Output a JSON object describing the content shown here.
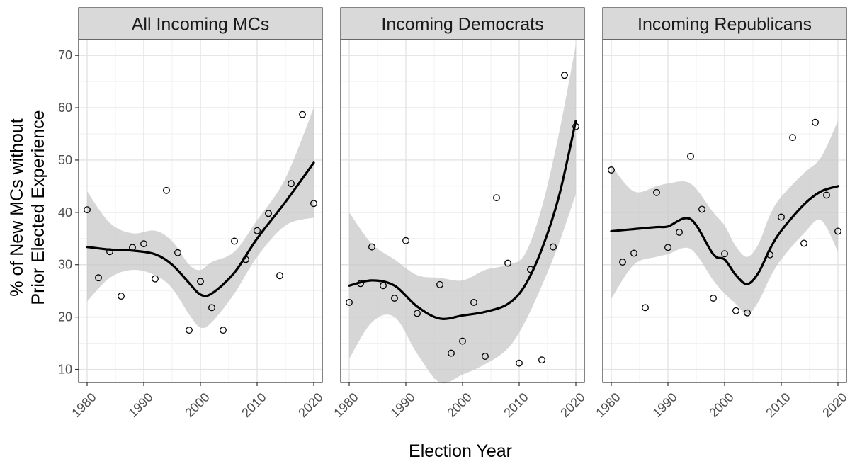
{
  "figure": {
    "xlabel": "Election Year",
    "ylabel_line1": "% of New MCs without",
    "ylabel_line2": "Prior Elected Experience"
  },
  "chart_data": {
    "type": "scatter",
    "xlabel": "Election Year",
    "ylabel": "% of New MCs without Prior Elected Experience",
    "xlim": [
      1978.5,
      2021.5
    ],
    "ylim": [
      7.5,
      73
    ],
    "x_ticks": [
      1980,
      1990,
      2000,
      2010,
      2020
    ],
    "y_ticks": [
      10,
      20,
      30,
      40,
      50,
      60,
      70
    ],
    "grid": true,
    "panels": [
      {
        "title": "All Incoming MCs",
        "points": [
          [
            1980,
            40.5
          ],
          [
            1982,
            27.5
          ],
          [
            1984,
            32.5
          ],
          [
            1986,
            24
          ],
          [
            1988,
            33.3
          ],
          [
            1990,
            34
          ],
          [
            1992,
            27.3
          ],
          [
            1994,
            44.2
          ],
          [
            1996,
            32.3
          ],
          [
            1998,
            17.5
          ],
          [
            2000,
            26.8
          ],
          [
            2002,
            21.8
          ],
          [
            2004,
            17.5
          ],
          [
            2006,
            34.5
          ],
          [
            2008,
            31
          ],
          [
            2010,
            36.5
          ],
          [
            2012,
            39.8
          ],
          [
            2014,
            27.9
          ],
          [
            2016,
            45.5
          ],
          [
            2018,
            58.7
          ],
          [
            2020,
            41.7
          ]
        ],
        "smooth": [
          [
            1980,
            33.4
          ],
          [
            1984,
            32.9
          ],
          [
            1988,
            32.7
          ],
          [
            1992,
            32.0
          ],
          [
            1995,
            30.0
          ],
          [
            1998,
            26.5
          ],
          [
            2000,
            24.3
          ],
          [
            2002,
            24.5
          ],
          [
            2006,
            28.5
          ],
          [
            2010,
            35.0
          ],
          [
            2015,
            42.0
          ],
          [
            2020,
            49.5
          ]
        ],
        "band_upper": [
          [
            1980,
            44
          ],
          [
            1984,
            38
          ],
          [
            1988,
            36
          ],
          [
            1992,
            36.5
          ],
          [
            1995,
            34.5
          ],
          [
            1998,
            30
          ],
          [
            2000,
            29
          ],
          [
            2002,
            30.5
          ],
          [
            2006,
            32.5
          ],
          [
            2010,
            38.5
          ],
          [
            2015,
            46.5
          ],
          [
            2020,
            60
          ]
        ],
        "band_lower": [
          [
            1980,
            23
          ],
          [
            1984,
            27.5
          ],
          [
            1988,
            29
          ],
          [
            1992,
            28
          ],
          [
            1995,
            25.5
          ],
          [
            1998,
            20.5
          ],
          [
            2000,
            18
          ],
          [
            2002,
            19
          ],
          [
            2006,
            24.5
          ],
          [
            2010,
            31.5
          ],
          [
            2015,
            37.5
          ],
          [
            2020,
            39
          ]
        ]
      },
      {
        "title": "Incoming Democrats",
        "points": [
          [
            1980,
            22.8
          ],
          [
            1982,
            26.4
          ],
          [
            1984,
            33.4
          ],
          [
            1986,
            26
          ],
          [
            1988,
            23.6
          ],
          [
            1990,
            34.6
          ],
          [
            1992,
            20.7
          ],
          [
            1996,
            26.2
          ],
          [
            1998,
            13.1
          ],
          [
            2000,
            15.4
          ],
          [
            2002,
            22.8
          ],
          [
            2004,
            12.5
          ],
          [
            2006,
            42.8
          ],
          [
            2008,
            30.3
          ],
          [
            2010,
            11.2
          ],
          [
            2012,
            29.1
          ],
          [
            2014,
            11.8
          ],
          [
            2016,
            33.4
          ],
          [
            2018,
            66.2
          ],
          [
            2020,
            56.4
          ]
        ],
        "smooth": [
          [
            1980,
            26
          ],
          [
            1984,
            27
          ],
          [
            1988,
            26
          ],
          [
            1992,
            22
          ],
          [
            1996,
            19.7
          ],
          [
            2000,
            20.3
          ],
          [
            2004,
            21
          ],
          [
            2008,
            22.5
          ],
          [
            2011,
            26
          ],
          [
            2014,
            33
          ],
          [
            2017,
            43
          ],
          [
            2020,
            57.5
          ]
        ],
        "band_upper": [
          [
            1980,
            40
          ],
          [
            1984,
            34
          ],
          [
            1988,
            31
          ],
          [
            1992,
            28
          ],
          [
            1996,
            27.5
          ],
          [
            2000,
            27
          ],
          [
            2004,
            29
          ],
          [
            2008,
            30
          ],
          [
            2011,
            32
          ],
          [
            2014,
            41
          ],
          [
            2017,
            55
          ],
          [
            2020,
            72
          ]
        ],
        "band_lower": [
          [
            1980,
            12
          ],
          [
            1984,
            19
          ],
          [
            1988,
            20
          ],
          [
            1992,
            13
          ],
          [
            1996,
            7.5
          ],
          [
            2000,
            9
          ],
          [
            2004,
            11
          ],
          [
            2008,
            14
          ],
          [
            2011,
            19
          ],
          [
            2014,
            26
          ],
          [
            2017,
            34
          ],
          [
            2020,
            43.5
          ]
        ]
      },
      {
        "title": "Incoming Republicans",
        "points": [
          [
            1980,
            48.1
          ],
          [
            1982,
            30.5
          ],
          [
            1984,
            32.2
          ],
          [
            1986,
            21.8
          ],
          [
            1988,
            43.8
          ],
          [
            1990,
            33.3
          ],
          [
            1992,
            36.2
          ],
          [
            1994,
            50.7
          ],
          [
            1996,
            40.6
          ],
          [
            1998,
            23.6
          ],
          [
            2000,
            32.1
          ],
          [
            2002,
            21.2
          ],
          [
            2004,
            20.8
          ],
          [
            2008,
            31.9
          ],
          [
            2010,
            39.1
          ],
          [
            2012,
            54.3
          ],
          [
            2014,
            34.1
          ],
          [
            2016,
            57.2
          ],
          [
            2018,
            43.3
          ],
          [
            2020,
            36.4
          ]
        ],
        "smooth": [
          [
            1980,
            36.4
          ],
          [
            1984,
            36.8
          ],
          [
            1988,
            37.2
          ],
          [
            1990,
            37.3
          ],
          [
            1994,
            38.7
          ],
          [
            1998,
            32
          ],
          [
            2000,
            31
          ],
          [
            2002,
            28
          ],
          [
            2004,
            26.3
          ],
          [
            2006,
            28.5
          ],
          [
            2008,
            33
          ],
          [
            2010,
            36.5
          ],
          [
            2014,
            41.5
          ],
          [
            2017,
            44
          ],
          [
            2020,
            45
          ]
        ],
        "band_upper": [
          [
            1980,
            49
          ],
          [
            1984,
            44
          ],
          [
            1988,
            45
          ],
          [
            1990,
            45.5
          ],
          [
            1994,
            45.5
          ],
          [
            1998,
            40
          ],
          [
            2000,
            37.5
          ],
          [
            2002,
            33.5
          ],
          [
            2004,
            31.5
          ],
          [
            2006,
            34
          ],
          [
            2008,
            39.5
          ],
          [
            2010,
            43
          ],
          [
            2014,
            47.5
          ],
          [
            2017,
            50.5
          ],
          [
            2020,
            57.5
          ]
        ],
        "band_lower": [
          [
            1980,
            23.5
          ],
          [
            1984,
            30
          ],
          [
            1988,
            31.5
          ],
          [
            1990,
            32
          ],
          [
            1994,
            33
          ],
          [
            1998,
            27
          ],
          [
            2000,
            24.5
          ],
          [
            2002,
            22.5
          ],
          [
            2004,
            20.5
          ],
          [
            2006,
            23
          ],
          [
            2008,
            27.5
          ],
          [
            2010,
            31
          ],
          [
            2014,
            36
          ],
          [
            2017,
            38.5
          ],
          [
            2020,
            32.5
          ]
        ]
      }
    ]
  }
}
